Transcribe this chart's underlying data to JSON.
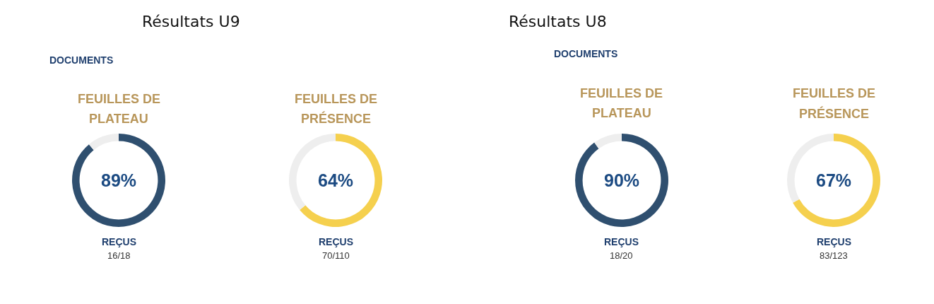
{
  "chart_data": [
    {
      "type": "donut",
      "title": "FEUILLES DE PLATEAU",
      "categories": [
        null,
        null
      ],
      "values": [
        89,
        11
      ],
      "colors": [
        "#2f4f6f",
        "#eeeeee"
      ],
      "value_labels": [
        "89%",
        null
      ],
      "annotations": [
        "Résultats U9",
        "DOCUMENTS",
        "REÇUS",
        "16/18"
      ]
    },
    {
      "type": "donut",
      "title": "FEUILLES DE PRÉSENCE",
      "categories": [
        null,
        null
      ],
      "values": [
        64,
        36
      ],
      "colors": [
        "#f5d04e",
        "#eeeeee"
      ],
      "value_labels": [
        "64%",
        null
      ],
      "annotations": [
        "REÇUS",
        "70/110"
      ]
    },
    {
      "type": "donut",
      "title": "FEUILLES DE PLATEAU",
      "categories": [
        null,
        null
      ],
      "values": [
        90,
        10
      ],
      "colors": [
        "#2f4f6f",
        "#eeeeee"
      ],
      "value_labels": [
        "90%",
        null
      ],
      "annotations": [
        "Résultats U8",
        "DOCUMENTS",
        "REÇUS",
        "18/20"
      ]
    },
    {
      "type": "donut",
      "title": "FEUILLES DE PRÉSENCE",
      "categories": [
        null,
        null
      ],
      "values": [
        67,
        33
      ],
      "colors": [
        "#f5d04e",
        "#eeeeee"
      ],
      "value_labels": [
        "67%",
        null
      ],
      "annotations": [
        "REÇUS",
        "83/123"
      ]
    }
  ]
}
